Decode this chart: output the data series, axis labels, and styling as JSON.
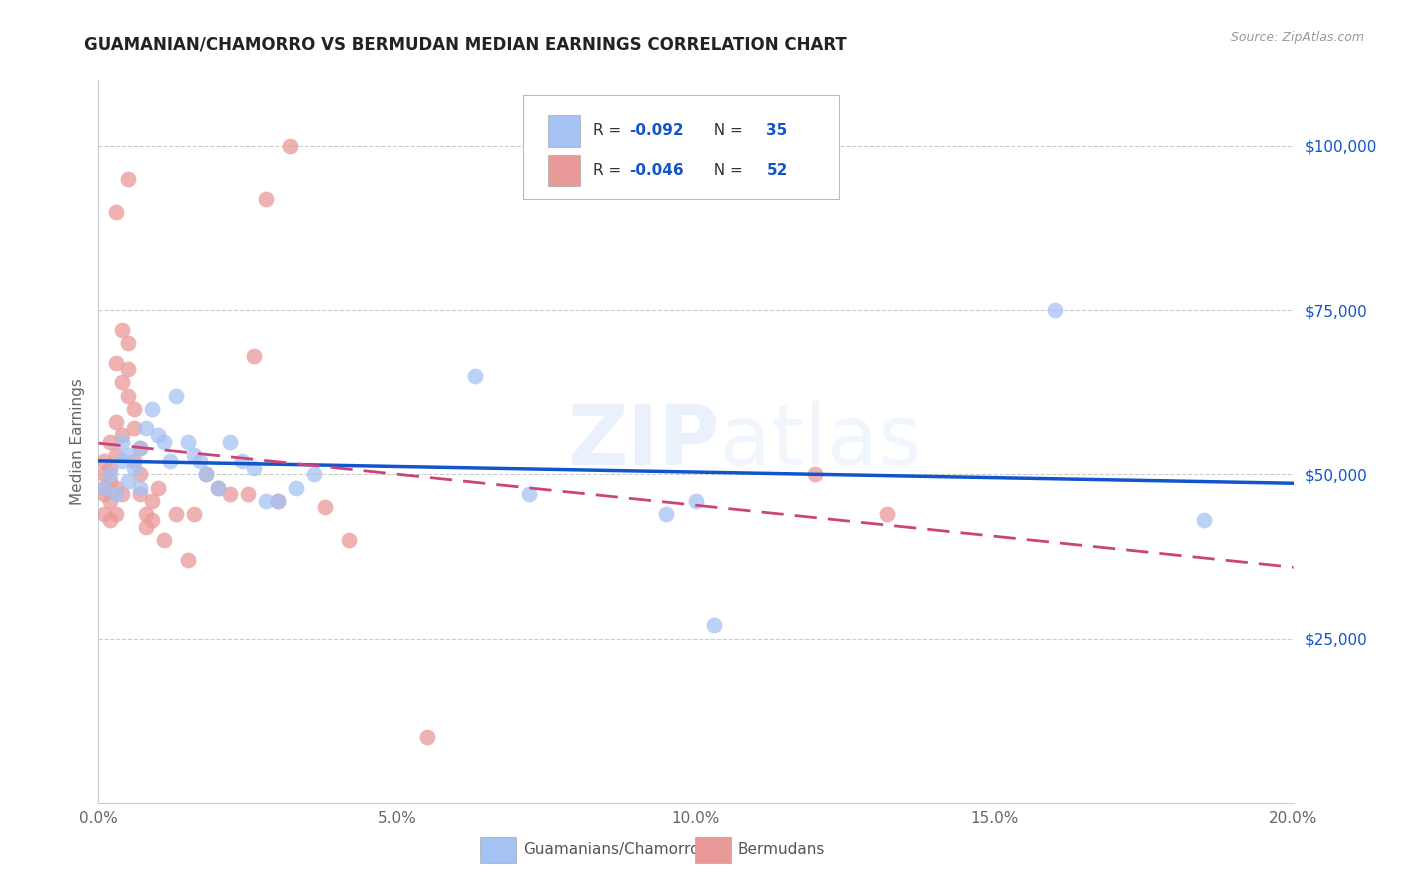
{
  "title": "GUAMANIAN/CHAMORRO VS BERMUDAN MEDIAN EARNINGS CORRELATION CHART",
  "source": "Source: ZipAtlas.com",
  "ylabel_label": "Median Earnings",
  "xlim": [
    0.0,
    0.2
  ],
  "ylim": [
    0,
    110000
  ],
  "yticks": [
    0,
    25000,
    50000,
    75000,
    100000
  ],
  "ytick_labels": [
    "",
    "$25,000",
    "$50,000",
    "$75,000",
    "$100,000"
  ],
  "xtick_positions": [
    0.0,
    0.05,
    0.1,
    0.15,
    0.2
  ],
  "xtick_labels": [
    "0.0%",
    "5.0%",
    "10.0%",
    "15.0%",
    "20.0%"
  ],
  "blue_color": "#a4c2f4",
  "pink_color": "#ea9999",
  "blue_line_color": "#1155cc",
  "pink_line_color": "#cc4477",
  "legend_r1": "-0.092",
  "legend_n1": "35",
  "legend_r2": "-0.046",
  "legend_n2": "52",
  "watermark_zip": "ZIP",
  "watermark_atlas": "atlas",
  "background_color": "#ffffff",
  "grid_color": "#cccccc",
  "blue_scatter_x": [
    0.001,
    0.002,
    0.003,
    0.004,
    0.004,
    0.005,
    0.005,
    0.006,
    0.007,
    0.007,
    0.008,
    0.009,
    0.01,
    0.011,
    0.012,
    0.013,
    0.015,
    0.016,
    0.017,
    0.018,
    0.02,
    0.022,
    0.024,
    0.026,
    0.028,
    0.03,
    0.033,
    0.036,
    0.063,
    0.072,
    0.095,
    0.1,
    0.103,
    0.16,
    0.185
  ],
  "blue_scatter_y": [
    48000,
    50000,
    47000,
    52000,
    55000,
    49000,
    53000,
    51000,
    54000,
    48000,
    57000,
    60000,
    56000,
    55000,
    52000,
    62000,
    55000,
    53000,
    52000,
    50000,
    48000,
    55000,
    52000,
    51000,
    46000,
    46000,
    48000,
    50000,
    65000,
    47000,
    44000,
    46000,
    27000,
    75000,
    43000
  ],
  "pink_scatter_x": [
    0.001,
    0.001,
    0.001,
    0.001,
    0.001,
    0.002,
    0.002,
    0.002,
    0.002,
    0.002,
    0.003,
    0.003,
    0.003,
    0.003,
    0.003,
    0.003,
    0.004,
    0.004,
    0.004,
    0.004,
    0.005,
    0.005,
    0.005,
    0.005,
    0.006,
    0.006,
    0.006,
    0.007,
    0.007,
    0.007,
    0.008,
    0.008,
    0.009,
    0.009,
    0.01,
    0.011,
    0.013,
    0.015,
    0.016,
    0.018,
    0.02,
    0.022,
    0.025,
    0.026,
    0.028,
    0.03,
    0.032,
    0.038,
    0.042,
    0.055,
    0.12,
    0.132
  ],
  "pink_scatter_y": [
    48000,
    52000,
    47000,
    50000,
    44000,
    46000,
    51000,
    55000,
    49000,
    43000,
    53000,
    58000,
    44000,
    48000,
    67000,
    90000,
    47000,
    56000,
    64000,
    72000,
    62000,
    70000,
    66000,
    95000,
    52000,
    57000,
    60000,
    47000,
    54000,
    50000,
    44000,
    42000,
    43000,
    46000,
    48000,
    40000,
    44000,
    37000,
    44000,
    50000,
    48000,
    47000,
    47000,
    68000,
    92000,
    46000,
    100000,
    45000,
    40000,
    10000,
    50000,
    44000
  ]
}
